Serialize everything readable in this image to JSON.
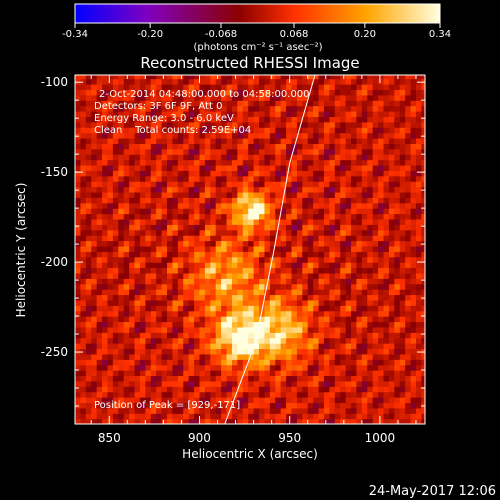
{
  "chart_data": {
    "type": "heatmap",
    "title": "Reconstructed RHESSI Image",
    "xlabel": "Heliocentric X (arcsec)",
    "ylabel": "Heliocentric Y (arcsec)",
    "xlim": [
      831,
      1025
    ],
    "ylim": [
      -290,
      -96
    ],
    "x_ticks": [
      850,
      900,
      950,
      1000
    ],
    "y_ticks": [
      -250,
      -200,
      -150,
      -100
    ],
    "colorbar": {
      "range": [
        -0.34,
        0.34
      ],
      "ticks": [
        "-0.34",
        "-0.20",
        "-0.068",
        "0.068",
        "0.20",
        "0.34"
      ],
      "unit_label": "(photons cm⁻² s⁻¹ asec⁻²)",
      "colors": [
        "#0000ff",
        "#8000c0",
        "#8b0000",
        "#ff3000",
        "#ffa500",
        "#ffffe0"
      ]
    },
    "info_lines": [
      "2-Oct-2014 04:48:00.000 to 04:58:00.000",
      "Detectors: 3F 6F 9F, Att 0",
      "Energy Range: 3.0 - 6.0 keV",
      "Clean    Total counts: 2.59E+04"
    ],
    "peak_label": "Position of Peak = [929,-171]",
    "peak": {
      "x": 929,
      "y": -171,
      "value": 0.34
    },
    "sources": [
      {
        "x": 929,
        "y": -171,
        "peak": 0.34,
        "width": 7
      },
      {
        "x": 922,
        "y": -242,
        "peak": 0.31,
        "width": 10
      },
      {
        "x": 944,
        "y": -238,
        "peak": 0.24,
        "width": 12
      },
      {
        "x": 915,
        "y": -208,
        "peak": 0.18,
        "width": 14
      }
    ],
    "limb_curve": [
      {
        "x": 964,
        "y": -96
      },
      {
        "x": 950,
        "y": -145
      },
      {
        "x": 941,
        "y": -195
      },
      {
        "x": 931,
        "y": -245
      },
      {
        "x": 914,
        "y": -290
      }
    ],
    "grid": false
  },
  "timestamp": "24-May-2017 12:06"
}
